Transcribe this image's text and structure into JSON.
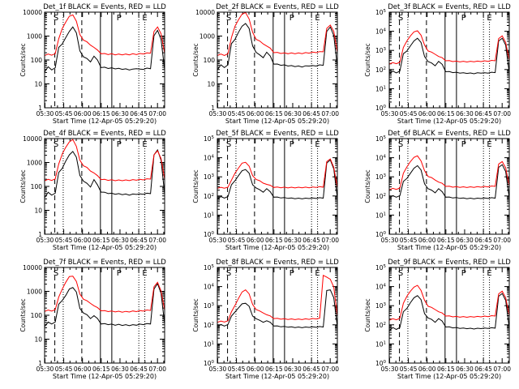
{
  "figure": {
    "xlabel": "Start Time (12-Apr-05 05:29:20)",
    "ylabel": "Counts/sec",
    "x_ticks": [
      "05:30",
      "05:45",
      "06:00",
      "06:15",
      "06:30",
      "06:45",
      "07:00"
    ],
    "event_markers": [
      "S",
      "P",
      "E"
    ],
    "colors": {
      "events": "#000000",
      "lld": "#ff0000"
    }
  },
  "chart_data": [
    {
      "type": "line",
      "title": "Det_1f BLACK = Events, RED = LLD",
      "y_scale": "log",
      "ylim": [
        1,
        10000
      ],
      "y_ticks": [
        "1",
        "10",
        "100",
        "1000",
        "10000"
      ],
      "series": [
        {
          "name": "Events",
          "values": [
            33,
            50,
            40,
            45,
            350,
            450,
            900,
            1500,
            2500,
            1300,
            250,
            130,
            120,
            80,
            150,
            95,
            50,
            48,
            46,
            45,
            44,
            43,
            42,
            41,
            40,
            40,
            45,
            40,
            42,
            44,
            45,
            1000,
            1800,
            700,
            40
          ]
        },
        {
          "name": "LLD",
          "values": [
            160,
            170,
            165,
            175,
            800,
            2000,
            4000,
            6500,
            8000,
            4000,
            1200,
            650,
            600,
            400,
            350,
            250,
            190,
            180,
            175,
            175,
            170,
            170,
            170,
            170,
            170,
            175,
            175,
            180,
            185,
            190,
            200,
            1500,
            2500,
            1200,
            200
          ]
        }
      ]
    },
    {
      "type": "line",
      "title": "Det_2f BLACK = Events, RED = LLD",
      "y_scale": "log",
      "ylim": [
        1,
        10000
      ],
      "y_ticks": [
        "1",
        "10",
        "100",
        "1000",
        "10000"
      ],
      "series": [
        {
          "name": "Events",
          "values": [
            40,
            60,
            50,
            60,
            500,
            700,
            1500,
            2500,
            3500,
            2000,
            400,
            200,
            170,
            120,
            220,
            140,
            70,
            65,
            62,
            60,
            58,
            56,
            55,
            54,
            53,
            55,
            58,
            56,
            58,
            60,
            62,
            1500,
            2500,
            1000,
            55
          ]
        },
        {
          "name": "LLD",
          "values": [
            160,
            170,
            160,
            175,
            900,
            2500,
            5000,
            8000,
            10000,
            5000,
            1500,
            700,
            650,
            450,
            400,
            300,
            210,
            200,
            195,
            190,
            190,
            190,
            188,
            190,
            192,
            195,
            200,
            205,
            210,
            215,
            230,
            2000,
            3000,
            1500,
            220
          ]
        }
      ]
    },
    {
      "type": "line",
      "title": "Det_3f BLACK = Events, RED = LLD",
      "y_scale": "log",
      "ylim": [
        1,
        100000
      ],
      "y_ticks": [
        "10^0",
        "10^1",
        "10^2",
        "10^3",
        "10^4",
        "10^5"
      ],
      "series": [
        {
          "name": "Events",
          "values": [
            60,
            80,
            70,
            80,
            700,
            900,
            1800,
            3000,
            4500,
            2500,
            500,
            250,
            230,
            150,
            280,
            180,
            80,
            75,
            72,
            70,
            68,
            66,
            65,
            64,
            63,
            65,
            68,
            66,
            68,
            70,
            72,
            3000,
            4500,
            1800,
            70
          ]
        },
        {
          "name": "LLD",
          "values": [
            200,
            220,
            210,
            230,
            1500,
            3000,
            6000,
            9000,
            11000,
            6000,
            2000,
            900,
            850,
            600,
            500,
            400,
            300,
            280,
            270,
            265,
            260,
            260,
            258,
            260,
            262,
            265,
            270,
            275,
            280,
            290,
            300,
            4000,
            6000,
            2500,
            320
          ]
        }
      ]
    },
    {
      "type": "line",
      "title": "Det_4f BLACK = Events, RED = LLD",
      "y_scale": "log",
      "ylim": [
        1,
        10000
      ],
      "y_ticks": [
        "1",
        "10",
        "100",
        "1000",
        "10000"
      ],
      "series": [
        {
          "name": "Events",
          "values": [
            35,
            55,
            45,
            50,
            400,
            550,
            1200,
            2000,
            3000,
            1600,
            300,
            160,
            140,
            90,
            200,
            110,
            60,
            55,
            52,
            50,
            49,
            48,
            47,
            46,
            45,
            46,
            48,
            47,
            49,
            50,
            52,
            2000,
            3500,
            1200,
            50
          ]
        },
        {
          "name": "LLD",
          "values": [
            180,
            190,
            185,
            195,
            900,
            2200,
            4500,
            7000,
            9500,
            4500,
            1300,
            700,
            650,
            420,
            380,
            270,
            200,
            190,
            185,
            182,
            180,
            180,
            180,
            180,
            182,
            185,
            188,
            190,
            195,
            200,
            210,
            2000,
            3200,
            1400,
            210
          ]
        }
      ]
    },
    {
      "type": "line",
      "title": "Det_5f BLACK = Events, RED = LLD",
      "y_scale": "log",
      "ylim": [
        1,
        100000
      ],
      "y_ticks": [
        "10^0",
        "10^1",
        "10^2",
        "10^3",
        "10^4",
        "10^5"
      ],
      "series": [
        {
          "name": "Events",
          "values": [
            70,
            90,
            80,
            90,
            400,
            600,
            1200,
            2000,
            2500,
            1500,
            400,
            250,
            220,
            150,
            250,
            160,
            90,
            85,
            82,
            80,
            78,
            76,
            75,
            74,
            73,
            74,
            76,
            75,
            77,
            78,
            80,
            5000,
            8000,
            2500,
            80
          ]
        },
        {
          "name": "LLD",
          "values": [
            260,
            270,
            265,
            275,
            700,
            1500,
            3000,
            5000,
            6000,
            3500,
            1200,
            700,
            650,
            450,
            420,
            350,
            290,
            285,
            280,
            278,
            275,
            275,
            275,
            275,
            276,
            278,
            280,
            285,
            290,
            295,
            300,
            6000,
            9000,
            3000,
            300
          ]
        }
      ]
    },
    {
      "type": "line",
      "title": "Det_6f BLACK = Events, RED = LLD",
      "y_scale": "log",
      "ylim": [
        1,
        100000
      ],
      "y_ticks": [
        "10^0",
        "10^1",
        "10^2",
        "10^3",
        "10^4",
        "10^5"
      ],
      "series": [
        {
          "name": "Events",
          "values": [
            80,
            100,
            90,
            100,
            600,
            800,
            1600,
            2700,
            4000,
            2200,
            450,
            230,
            210,
            140,
            250,
            160,
            90,
            85,
            82,
            80,
            78,
            76,
            75,
            74,
            73,
            74,
            76,
            75,
            77,
            78,
            80,
            3000,
            4500,
            1800,
            80
          ]
        },
        {
          "name": "LLD",
          "values": [
            220,
            240,
            230,
            250,
            1600,
            3200,
            6500,
            10000,
            13000,
            6500,
            2200,
            1000,
            950,
            650,
            550,
            440,
            330,
            310,
            300,
            295,
            290,
            290,
            288,
            290,
            292,
            295,
            300,
            305,
            310,
            320,
            330,
            4500,
            6500,
            2800,
            350
          ]
        }
      ]
    },
    {
      "type": "line",
      "title": "Det_7f BLACK = Events, RED = LLD",
      "y_scale": "log",
      "ylim": [
        1,
        10000
      ],
      "y_ticks": [
        "1",
        "10",
        "100",
        "1000",
        "10000"
      ],
      "series": [
        {
          "name": "Events",
          "values": [
            35,
            50,
            45,
            50,
            300,
            400,
            700,
            1200,
            1500,
            900,
            200,
            120,
            110,
            70,
            100,
            70,
            45,
            43,
            42,
            41,
            40,
            40,
            39,
            39,
            38,
            39,
            40,
            41,
            42,
            43,
            45,
            1200,
            2200,
            800,
            45
          ]
        },
        {
          "name": "LLD",
          "values": [
            150,
            160,
            155,
            165,
            600,
            1200,
            2500,
            4000,
            4500,
            2500,
            800,
            450,
            420,
            300,
            260,
            200,
            160,
            150,
            148,
            145,
            143,
            142,
            140,
            140,
            142,
            145,
            148,
            150,
            155,
            160,
            165,
            1500,
            2500,
            1000,
            170
          ]
        }
      ]
    },
    {
      "type": "line",
      "title": "Det_8f BLACK = Events, RED = LLD",
      "y_scale": "log",
      "ylim": [
        1,
        100000
      ],
      "y_ticks": [
        "10^0",
        "10^1",
        "10^2",
        "10^3",
        "10^4",
        "10^5"
      ],
      "series": [
        {
          "name": "Events",
          "values": [
            80,
            100,
            90,
            100,
            300,
            450,
            800,
            1200,
            1400,
            900,
            300,
            200,
            180,
            130,
            170,
            130,
            90,
            85,
            82,
            80,
            78,
            76,
            75,
            74,
            73,
            74,
            76,
            75,
            77,
            78,
            80,
            6000,
            7000,
            2500,
            80
          ]
        },
        {
          "name": "LLD",
          "values": [
            140,
            150,
            145,
            155,
            500,
            1000,
            2500,
            5000,
            7000,
            4000,
            1200,
            600,
            550,
            400,
            350,
            280,
            220,
            210,
            205,
            200,
            198,
            196,
            195,
            194,
            195,
            198,
            200,
            205,
            210,
            215,
            40000,
            30000,
            25000,
            9000,
            300
          ]
        }
      ]
    },
    {
      "type": "line",
      "title": "Det_9f BLACK = Events, RED = LLD",
      "y_scale": "log",
      "ylim": [
        1,
        100000
      ],
      "y_ticks": [
        "10^0",
        "10^1",
        "10^2",
        "10^3",
        "10^4",
        "10^5"
      ],
      "series": [
        {
          "name": "Events",
          "values": [
            50,
            70,
            60,
            70,
            500,
            700,
            1500,
            2500,
            3500,
            2000,
            400,
            220,
            200,
            130,
            220,
            150,
            80,
            75,
            72,
            70,
            68,
            66,
            65,
            64,
            63,
            64,
            66,
            65,
            67,
            68,
            70,
            3000,
            4500,
            1800,
            70
          ]
        },
        {
          "name": "LLD",
          "values": [
            180,
            200,
            190,
            210,
            1400,
            3000,
            6000,
            9000,
            12000,
            6000,
            2000,
            900,
            850,
            600,
            500,
            400,
            300,
            280,
            270,
            265,
            260,
            260,
            258,
            260,
            262,
            265,
            270,
            275,
            280,
            290,
            300,
            4000,
            6000,
            2500,
            320
          ]
        }
      ]
    }
  ]
}
